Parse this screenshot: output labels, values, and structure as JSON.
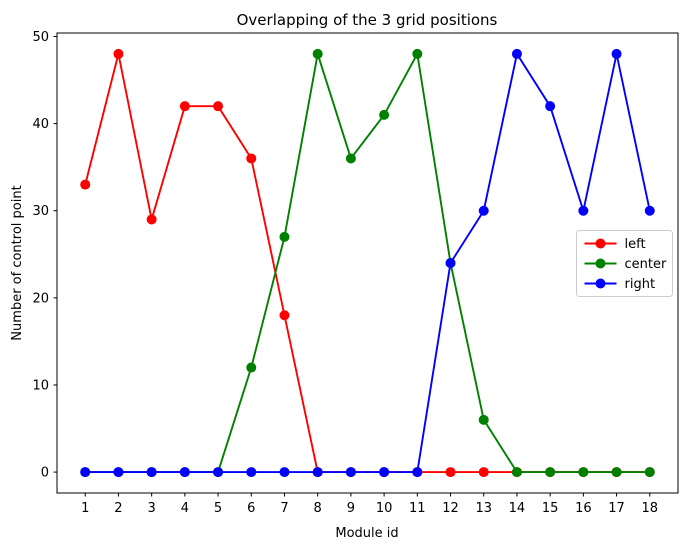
{
  "figure": {
    "background": "#ffffff",
    "spine_color": "#000000",
    "text_color": "#000000"
  },
  "chart_data": {
    "type": "line",
    "title": "Overlapping of the 3 grid positions",
    "xlabel": "Module id",
    "ylabel": "Number of control point",
    "x": [
      1,
      2,
      3,
      4,
      5,
      6,
      7,
      8,
      9,
      10,
      11,
      12,
      13,
      14,
      15,
      16,
      17,
      18
    ],
    "series": [
      {
        "name": "left",
        "color": "#ff0000",
        "values": [
          33,
          48,
          29,
          42,
          42,
          36,
          18,
          0,
          0,
          0,
          0,
          0,
          0,
          0,
          0,
          0,
          0,
          0
        ]
      },
      {
        "name": "center",
        "color": "#008000",
        "values": [
          0,
          0,
          0,
          0,
          0,
          12,
          27,
          48,
          36,
          41,
          48,
          24,
          6,
          0,
          0,
          0,
          0,
          0
        ]
      },
      {
        "name": "right",
        "color": "#0000ff",
        "values": [
          0,
          0,
          0,
          0,
          0,
          0,
          0,
          0,
          0,
          0,
          0,
          24,
          30,
          48,
          42,
          30,
          48,
          30
        ]
      }
    ],
    "xticks": [
      1,
      2,
      3,
      4,
      5,
      6,
      7,
      8,
      9,
      10,
      11,
      12,
      13,
      14,
      15,
      16,
      17,
      18
    ],
    "yticks": [
      0,
      10,
      20,
      30,
      40,
      50
    ],
    "xlim": [
      0.15,
      18.85
    ],
    "ylim": [
      -2.4,
      50.4
    ],
    "grid": false,
    "marker": "o",
    "legend": {
      "position": "center right",
      "entries": [
        "left",
        "center",
        "right"
      ]
    }
  }
}
